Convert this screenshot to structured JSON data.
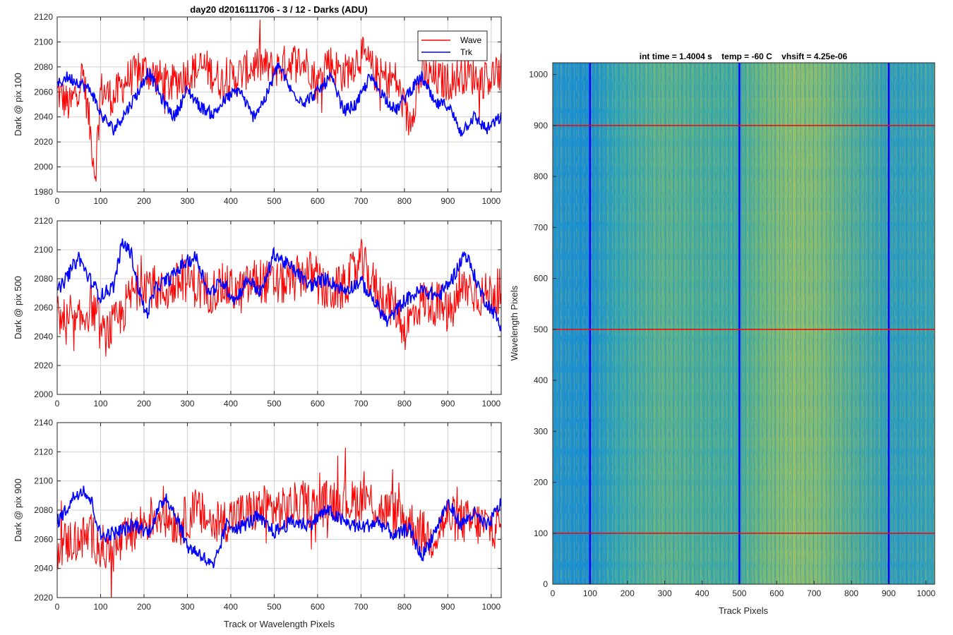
{
  "figure": {
    "suptitle": "day20 d2016111706 - 3 / 12 - Darks (ADU)",
    "colors": {
      "wave": "#ff0000",
      "trk": "#0000ff",
      "grid": "#d0d0d0",
      "axes": "#262626"
    }
  },
  "chart_data": [
    {
      "type": "line",
      "ylabel": "Dark @ pix 100",
      "xlabel": "",
      "xlim": [
        0,
        1023
      ],
      "ylim": [
        1980,
        2120
      ],
      "x_ticks": [
        "0",
        "100",
        "200",
        "300",
        "400",
        "500",
        "600",
        "700",
        "800",
        "900",
        "1000"
      ],
      "y_ticks": [
        "1980",
        "2000",
        "2020",
        "2040",
        "2060",
        "2080",
        "2100",
        "2120"
      ],
      "grid": true,
      "legend": {
        "placement": "top-right",
        "entries": [
          "Wave",
          "Trk"
        ]
      },
      "series": [
        {
          "name": "Wave",
          "color": "#ff0000",
          "summary": {
            "x_start": 0,
            "x_end": 1023,
            "points": 1024
          },
          "x": [
            0,
            30,
            60,
            88,
            100,
            130,
            160,
            200,
            230,
            260,
            300,
            340,
            380,
            420,
            460,
            500,
            540,
            580,
            600,
            620,
            660,
            700,
            740,
            780,
            810,
            840,
            870,
            900,
            940,
            980,
            1023
          ],
          "values": [
            2060,
            2048,
            2075,
            1995,
            2062,
            2055,
            2070,
            2078,
            2072,
            2065,
            2075,
            2080,
            2068,
            2074,
            2082,
            2078,
            2085,
            2082,
            2065,
            2086,
            2074,
            2090,
            2072,
            2070,
            2035,
            2074,
            2070,
            2068,
            2075,
            2070,
            2075
          ]
        },
        {
          "name": "Trk",
          "color": "#0000ff",
          "x": [
            0,
            20,
            50,
            80,
            100,
            130,
            160,
            190,
            210,
            240,
            270,
            300,
            330,
            360,
            390,
            420,
            450,
            480,
            510,
            540,
            570,
            600,
            630,
            660,
            690,
            720,
            750,
            780,
            810,
            840,
            870,
            900,
            930,
            960,
            990,
            1023
          ],
          "values": [
            2065,
            2072,
            2068,
            2060,
            2042,
            2030,
            2045,
            2062,
            2077,
            2055,
            2040,
            2062,
            2048,
            2042,
            2055,
            2062,
            2040,
            2055,
            2082,
            2060,
            2052,
            2060,
            2072,
            2045,
            2050,
            2072,
            2058,
            2045,
            2060,
            2072,
            2050,
            2050,
            2028,
            2040,
            2030,
            2040
          ]
        }
      ]
    },
    {
      "type": "line",
      "ylabel": "Dark @ pix 500",
      "xlabel": "",
      "xlim": [
        0,
        1023
      ],
      "ylim": [
        2000,
        2120
      ],
      "x_ticks": [
        "0",
        "100",
        "200",
        "300",
        "400",
        "500",
        "600",
        "700",
        "800",
        "900",
        "1000"
      ],
      "y_ticks": [
        "2000",
        "2020",
        "2040",
        "2060",
        "2080",
        "2100",
        "2120"
      ],
      "grid": true,
      "series": [
        {
          "name": "Wave",
          "color": "#ff0000",
          "x": [
            0,
            40,
            80,
            105,
            140,
            170,
            200,
            240,
            270,
            300,
            340,
            380,
            420,
            460,
            500,
            540,
            580,
            620,
            660,
            700,
            740,
            780,
            800,
            840,
            880,
            905,
            940,
            980,
            1023
          ],
          "values": [
            2055,
            2045,
            2062,
            2040,
            2050,
            2068,
            2080,
            2070,
            2075,
            2080,
            2070,
            2075,
            2070,
            2080,
            2076,
            2078,
            2085,
            2070,
            2074,
            2092,
            2070,
            2060,
            2045,
            2065,
            2062,
            2055,
            2075,
            2068,
            2072
          ]
        },
        {
          "name": "Trk",
          "color": "#0000ff",
          "x": [
            0,
            20,
            50,
            70,
            100,
            130,
            150,
            170,
            190,
            205,
            230,
            260,
            290,
            320,
            350,
            380,
            410,
            440,
            470,
            500,
            520,
            550,
            580,
            620,
            660,
            700,
            740,
            760,
            800,
            840,
            880,
            910,
            940,
            980,
            1010,
            1023
          ],
          "values": [
            2070,
            2080,
            2095,
            2082,
            2068,
            2075,
            2105,
            2098,
            2070,
            2055,
            2075,
            2080,
            2090,
            2095,
            2070,
            2078,
            2065,
            2080,
            2070,
            2098,
            2092,
            2085,
            2075,
            2080,
            2072,
            2078,
            2060,
            2050,
            2065,
            2072,
            2068,
            2080,
            2098,
            2068,
            2055,
            2045
          ]
        }
      ]
    },
    {
      "type": "line",
      "ylabel": "Dark @ pix 900",
      "xlabel": "Track or Wavelength Pixels",
      "xlim": [
        0,
        1023
      ],
      "ylim": [
        2020,
        2140
      ],
      "x_ticks": [
        "0",
        "100",
        "200",
        "300",
        "400",
        "500",
        "600",
        "700",
        "800",
        "900",
        "1000"
      ],
      "y_ticks": [
        "2020",
        "2040",
        "2060",
        "2080",
        "2100",
        "2120",
        "2140"
      ],
      "grid": true,
      "series": [
        {
          "name": "Wave",
          "color": "#ff0000",
          "x": [
            0,
            40,
            80,
            120,
            160,
            200,
            240,
            280,
            320,
            360,
            400,
            440,
            480,
            520,
            560,
            600,
            640,
            680,
            710,
            740,
            780,
            820,
            860,
            900,
            940,
            980,
            1023
          ],
          "values": [
            2055,
            2060,
            2062,
            2050,
            2060,
            2072,
            2078,
            2070,
            2080,
            2070,
            2075,
            2078,
            2082,
            2080,
            2085,
            2082,
            2088,
            2085,
            2090,
            2080,
            2078,
            2070,
            2060,
            2075,
            2072,
            2070,
            2068
          ]
        },
        {
          "name": "Trk",
          "color": "#0000ff",
          "x": [
            0,
            20,
            40,
            60,
            80,
            100,
            140,
            180,
            210,
            250,
            280,
            300,
            330,
            360,
            390,
            420,
            460,
            500,
            540,
            580,
            620,
            660,
            700,
            740,
            780,
            810,
            840,
            870,
            900,
            930,
            960,
            990,
            1023
          ],
          "values": [
            2072,
            2080,
            2090,
            2095,
            2085,
            2062,
            2065,
            2070,
            2065,
            2090,
            2072,
            2055,
            2050,
            2040,
            2070,
            2068,
            2075,
            2065,
            2072,
            2070,
            2080,
            2072,
            2068,
            2072,
            2062,
            2068,
            2048,
            2065,
            2085,
            2070,
            2078,
            2068,
            2085
          ]
        }
      ]
    },
    {
      "type": "heatmap",
      "title": "int time = 1.4004 s    temp = -60 C    vhsift = 4.25e-06",
      "xlabel": "Track Pixels",
      "ylabel": "Wavelength Pixels",
      "xlim": [
        0,
        1023
      ],
      "ylim": [
        0,
        1023
      ],
      "x_ticks": [
        "0",
        "100",
        "200",
        "300",
        "400",
        "500",
        "600",
        "700",
        "800",
        "900",
        "1000"
      ],
      "y_ticks": [
        "0",
        "100",
        "200",
        "300",
        "400",
        "500",
        "600",
        "700",
        "800",
        "900",
        "1000"
      ],
      "colormap": "parula",
      "vertical_lines": {
        "color": "#0000ff",
        "x": [
          100,
          500,
          900
        ]
      },
      "horizontal_lines": {
        "color": "#ff0000",
        "y": [
          100,
          500,
          900
        ]
      }
    }
  ]
}
